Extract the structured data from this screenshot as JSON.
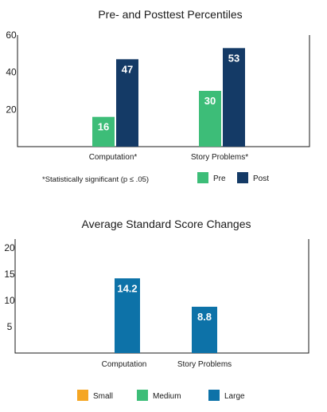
{
  "chart_data": [
    {
      "type": "bar",
      "title": "Pre- and Posttest Percentiles",
      "categories": [
        "Computation*",
        "Story Problems*"
      ],
      "series": [
        {
          "name": "Pre",
          "values": [
            16,
            30
          ],
          "color": "#3dbd78"
        },
        {
          "name": "Post",
          "values": [
            47,
            53
          ],
          "color": "#143a66"
        }
      ],
      "yticks": [
        20,
        40,
        60
      ],
      "ylim": [
        0,
        60
      ],
      "grid": false,
      "legend": "bottom-right",
      "note": "*Statistically significant (p ≤ .05)"
    },
    {
      "type": "bar",
      "title": "Average Standard Score Changes",
      "categories": [
        "Computation",
        "Story Problems"
      ],
      "series": [
        {
          "name": "Large",
          "values": [
            14.2,
            8.8
          ],
          "color": "#0d72a8"
        }
      ],
      "yticks": [
        5,
        10,
        15,
        20
      ],
      "ylim": [
        0,
        20
      ],
      "grid": false,
      "legend": "bottom",
      "legend_items": [
        {
          "name": "Small",
          "color": "#f5a623"
        },
        {
          "name": "Medium",
          "color": "#3dbd78"
        },
        {
          "name": "Large",
          "color": "#0d72a8"
        }
      ]
    }
  ]
}
